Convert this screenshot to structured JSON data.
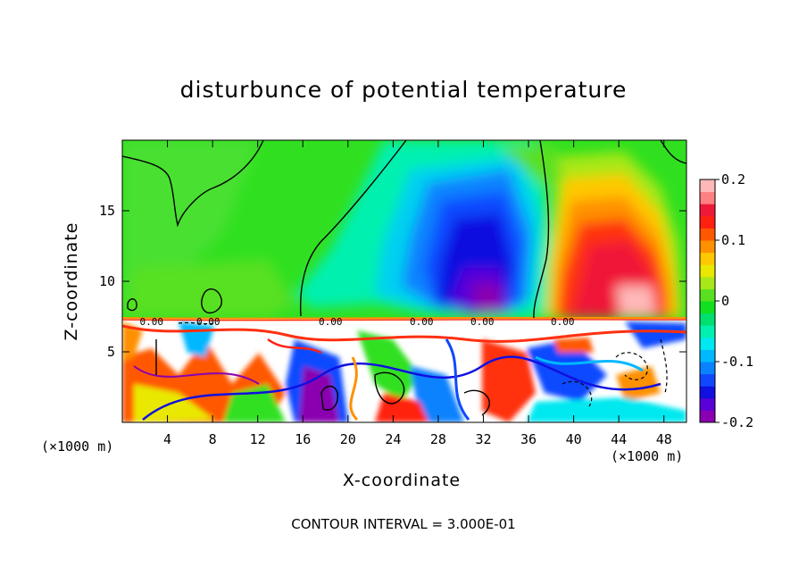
{
  "title": "disturbunce of potential temperature",
  "footer": "CONTOUR INTERVAL = 3.000E-01",
  "chart_data": {
    "type": "heatmap",
    "title": "disturbunce of potential temperature",
    "xlabel": "X-coordinate",
    "ylabel": "Z-coordinate",
    "x_unit": "(×1000 m)",
    "xlim": [
      0,
      50
    ],
    "ylim": [
      0,
      20
    ],
    "x_ticks": [
      4,
      8,
      12,
      16,
      20,
      24,
      28,
      32,
      36,
      40,
      44,
      48
    ],
    "y_ticks": [
      5,
      10,
      15
    ],
    "colorbar": {
      "range": [
        -0.2,
        0.2
      ],
      "tick_labels": [
        "0.2",
        "0.1",
        "0",
        "-0.1",
        "-0.2"
      ],
      "tick_values": [
        0.2,
        0.1,
        0,
        -0.1,
        -0.2
      ],
      "colors": [
        "#8a00b0",
        "#5a00d8",
        "#1010e0",
        "#1048ff",
        "#0a82ff",
        "#00b8ff",
        "#00e8f0",
        "#00f0b0",
        "#00e070",
        "#10e020",
        "#58e020",
        "#a8e818",
        "#e8e800",
        "#ffc800",
        "#ff9000",
        "#ff5800",
        "#ff2010",
        "#f01838",
        "#ff8080",
        "#ffb8b8"
      ]
    },
    "contour_labels": [
      "0.00",
      "0.00",
      "0.00",
      "0.00",
      "0.00",
      "0.00"
    ],
    "contour_interval": "3.000E-01",
    "features": [
      {
        "name": "negative anomaly",
        "x_center": 31.5,
        "z_center": 11,
        "value_min": -0.2
      },
      {
        "name": "positive anomaly",
        "x_center": 43,
        "z_center": 11,
        "value_max": 0.2
      }
    ]
  }
}
